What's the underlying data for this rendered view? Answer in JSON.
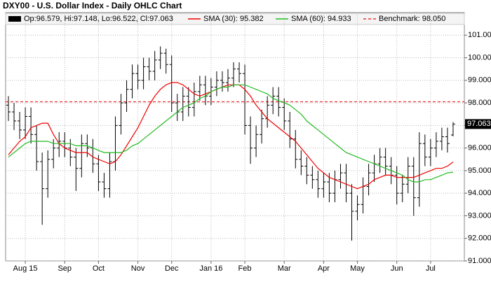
{
  "chart_data": {
    "type": "ohlc",
    "title": "DXY00 - U.S. Dollar Index - Daily OHLC Chart",
    "xlim": [
      -0.5,
      81
    ],
    "ylim": [
      91,
      102
    ],
    "yticks": [
      {
        "value": 91,
        "label": "91.000"
      },
      {
        "value": 92,
        "label": "92.000"
      },
      {
        "value": 93,
        "label": "93.000"
      },
      {
        "value": 94,
        "label": "94.000"
      },
      {
        "value": 95,
        "label": "95.000"
      },
      {
        "value": 96,
        "label": "96.000"
      },
      {
        "value": 97,
        "label": "97.000"
      },
      {
        "value": 98,
        "label": "98.000"
      },
      {
        "value": 99,
        "label": "99.000"
      },
      {
        "value": 100,
        "label": "100.000"
      },
      {
        "value": 101,
        "label": "101.000"
      }
    ],
    "xticks": [
      {
        "value": 3,
        "label": "Aug 15"
      },
      {
        "value": 10,
        "label": "Sep"
      },
      {
        "value": 16,
        "label": "Oct"
      },
      {
        "value": 23,
        "label": "Nov"
      },
      {
        "value": 29,
        "label": "Dec"
      },
      {
        "value": 36,
        "label": "Jan 16"
      },
      {
        "value": 42,
        "label": "Feb"
      },
      {
        "value": 49,
        "label": "Mar"
      },
      {
        "value": 56,
        "label": "Apr"
      },
      {
        "value": 62,
        "label": "May"
      },
      {
        "value": 69,
        "label": "Jun"
      },
      {
        "value": 75,
        "label": "Jul"
      }
    ],
    "grid": true,
    "ohlc": {
      "name": "Op:96.579, Hi:97.148, Lo:96.522, Cl:97.063",
      "color": "#000000",
      "open": [
        97.9,
        97.6,
        97.2,
        96.8,
        97.4,
        96.6,
        95.4,
        94.2,
        95.5,
        96.0,
        96.3,
        96.0,
        95.6,
        95.1,
        96.2,
        96.0,
        95.3,
        94.5,
        94.2,
        95.4,
        97.0,
        98.0,
        98.6,
        99.3,
        99.0,
        99.6,
        99.4,
        99.9,
        100.2,
        99.7,
        98.0,
        97.6,
        98.3,
        97.8,
        98.5,
        98.8,
        98.3,
        98.7,
        99.0,
        98.9,
        99.1,
        99.5,
        99.3,
        97.0,
        96.0,
        96.6,
        97.3,
        97.9,
        98.3,
        97.8,
        97.2,
        96.4,
        95.5,
        95.2,
        94.8,
        94.6,
        94.2,
        94.5,
        94.0,
        94.6,
        94.9,
        94.0,
        93.2,
        93.5,
        94.3,
        94.9,
        95.3,
        95.6,
        95.2,
        94.8,
        94.0,
        94.4,
        95.2,
        93.8,
        96.2,
        95.6,
        96.0,
        96.3,
        96.5,
        96.579
      ],
      "high": [
        98.3,
        98.0,
        97.6,
        97.8,
        97.8,
        97.0,
        95.8,
        95.9,
        96.4,
        96.7,
        96.7,
        96.4,
        96.0,
        96.6,
        96.6,
        96.4,
        95.7,
        94.9,
        95.8,
        97.4,
        98.4,
        99.0,
        99.7,
        99.7,
        100.0,
        100.0,
        100.3,
        100.5,
        100.4,
        100.1,
        98.4,
        98.7,
        98.7,
        98.9,
        99.2,
        99.2,
        99.1,
        99.4,
        99.4,
        99.5,
        99.8,
        99.8,
        99.7,
        97.4,
        97.0,
        97.7,
        98.3,
        98.7,
        98.7,
        98.2,
        97.6,
        96.8,
        95.9,
        95.6,
        95.2,
        95.0,
        94.9,
        94.9,
        95.0,
        95.3,
        95.3,
        94.4,
        93.9,
        94.7,
        95.3,
        95.7,
        96.0,
        96.0,
        95.6,
        95.2,
        94.8,
        95.6,
        95.6,
        96.7,
        96.6,
        96.4,
        96.7,
        96.9,
        96.9,
        97.148
      ],
      "low": [
        97.2,
        96.8,
        96.4,
        96.4,
        96.2,
        95.0,
        92.6,
        93.8,
        95.1,
        95.6,
        95.6,
        95.2,
        94.1,
        94.7,
        95.6,
        94.9,
        94.1,
        93.8,
        93.8,
        95.0,
        96.6,
        97.6,
        98.2,
        98.6,
        98.6,
        99.0,
        99.0,
        99.5,
        99.3,
        97.6,
        97.2,
        97.2,
        97.4,
        97.4,
        98.1,
        97.9,
        97.9,
        98.3,
        98.5,
        98.5,
        98.7,
        98.9,
        96.6,
        95.3,
        95.6,
        96.2,
        96.9,
        97.5,
        97.4,
        96.8,
        96.0,
        95.1,
        94.8,
        94.4,
        94.2,
        93.8,
        93.8,
        93.6,
        93.6,
        94.2,
        93.6,
        91.9,
        92.8,
        93.1,
        93.9,
        94.5,
        94.9,
        94.8,
        94.4,
        93.5,
        93.6,
        94.0,
        93.0,
        93.4,
        95.2,
        95.2,
        95.6,
        95.9,
        95.8,
        96.522
      ],
      "close": [
        97.6,
        97.2,
        96.8,
        97.4,
        96.6,
        95.4,
        94.2,
        95.5,
        96.0,
        96.3,
        96.0,
        95.6,
        95.1,
        96.2,
        96.0,
        95.3,
        94.5,
        94.2,
        95.4,
        97.0,
        98.0,
        98.6,
        99.3,
        99.0,
        99.6,
        99.4,
        99.9,
        100.2,
        99.7,
        98.0,
        97.6,
        98.3,
        97.8,
        98.5,
        98.8,
        98.3,
        98.7,
        99.0,
        98.9,
        99.1,
        99.5,
        99.3,
        97.0,
        96.0,
        96.6,
        97.3,
        97.9,
        98.3,
        97.8,
        97.2,
        96.4,
        95.5,
        95.2,
        94.8,
        94.6,
        94.2,
        94.5,
        94.0,
        94.6,
        94.9,
        94.0,
        93.2,
        93.5,
        94.3,
        94.9,
        95.3,
        95.6,
        95.2,
        94.8,
        94.0,
        94.4,
        95.2,
        93.8,
        96.2,
        95.6,
        96.0,
        96.3,
        96.5,
        96.2,
        97.063
      ]
    },
    "series": [
      {
        "name": "SMA (30): 95.382",
        "color": "#ee0000",
        "values": [
          95.7,
          96.0,
          96.3,
          96.5,
          96.9,
          97.0,
          97.1,
          97.1,
          96.6,
          96.2,
          96.0,
          95.9,
          95.8,
          95.8,
          95.8,
          95.6,
          95.5,
          95.4,
          95.3,
          95.4,
          95.7,
          96.1,
          96.5,
          96.9,
          97.4,
          97.9,
          98.3,
          98.6,
          98.8,
          98.9,
          98.9,
          98.8,
          98.6,
          98.4,
          98.3,
          98.4,
          98.5,
          98.6,
          98.7,
          98.8,
          98.8,
          98.8,
          98.6,
          98.3,
          97.9,
          97.6,
          97.3,
          97.1,
          96.9,
          96.7,
          96.5,
          96.3,
          96.0,
          95.7,
          95.4,
          95.1,
          94.9,
          94.7,
          94.6,
          94.5,
          94.4,
          94.3,
          94.2,
          94.3,
          94.4,
          94.6,
          94.7,
          94.8,
          94.8,
          94.7,
          94.7,
          94.7,
          94.7,
          94.8,
          94.9,
          95.0,
          95.1,
          95.1,
          95.2,
          95.382
        ]
      },
      {
        "name": "SMA (60): 94.933",
        "color": "#22bb22",
        "values": [
          95.6,
          95.8,
          96.0,
          96.2,
          96.3,
          96.3,
          96.3,
          96.3,
          96.2,
          96.2,
          96.2,
          96.2,
          96.1,
          96.1,
          96.1,
          96.0,
          95.9,
          95.8,
          95.8,
          95.8,
          95.8,
          95.9,
          96.1,
          96.2,
          96.4,
          96.6,
          96.8,
          97.0,
          97.2,
          97.4,
          97.6,
          97.8,
          97.9,
          98.0,
          98.2,
          98.3,
          98.5,
          98.6,
          98.7,
          98.7,
          98.8,
          98.8,
          98.8,
          98.7,
          98.6,
          98.5,
          98.4,
          98.2,
          98.1,
          98.0,
          97.9,
          97.7,
          97.5,
          97.2,
          97.0,
          96.8,
          96.6,
          96.4,
          96.2,
          96.0,
          95.8,
          95.7,
          95.6,
          95.5,
          95.4,
          95.3,
          95.2,
          95.1,
          95.0,
          94.9,
          94.8,
          94.6,
          94.5,
          94.5,
          94.6,
          94.6,
          94.7,
          94.8,
          94.9,
          94.933
        ]
      }
    ],
    "benchmark": {
      "name": "Benchmark: 98.050",
      "value": 98.05,
      "color": "#ee3333"
    },
    "last_label": "97.063"
  }
}
